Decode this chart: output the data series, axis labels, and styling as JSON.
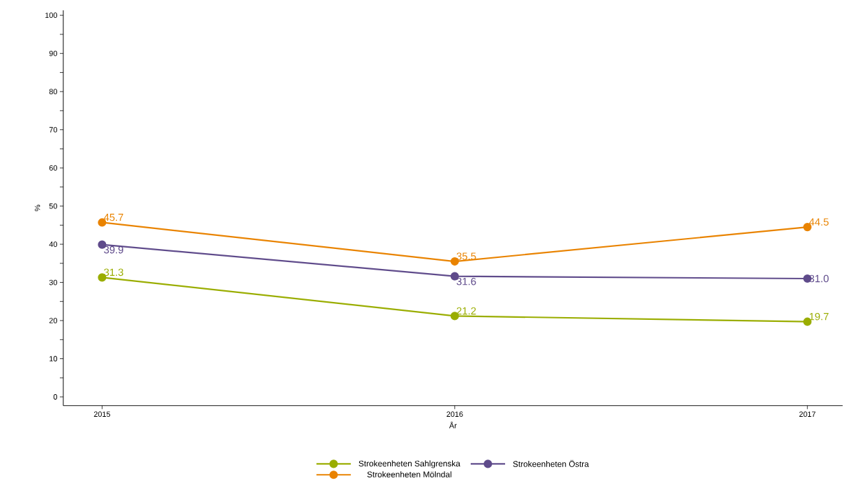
{
  "chart_data": {
    "type": "line",
    "xlabel": "År",
    "ylabel": "%",
    "categories": [
      "2015",
      "2016",
      "2017"
    ],
    "series": [
      {
        "name": "Strokeenheten Sahlgrenska",
        "color": "#9aad00",
        "values": [
          31.3,
          21.2,
          19.7
        ],
        "value_labels": [
          "31.3",
          "21.2",
          "19.7"
        ]
      },
      {
        "name": "Strokeenheten Östra",
        "color": "#5f4b8b",
        "values": [
          39.9,
          31.6,
          31.0
        ],
        "value_labels": [
          "39.9",
          "31.6",
          "31.0"
        ]
      },
      {
        "name": "Strokeenheten Mölndal",
        "color": "#e98300",
        "values": [
          45.7,
          35.5,
          44.5
        ],
        "value_labels": [
          "45.7",
          "35.5",
          "44.5"
        ]
      }
    ],
    "ylim": [
      -2.3,
      101.3
    ],
    "yticks": [
      0,
      {
        "value": 5,
        "label": null
      },
      10,
      {
        "value": 15,
        "label": null
      },
      20,
      {
        "value": 25,
        "label": null
      },
      30,
      {
        "value": 35,
        "label": null
      },
      40,
      {
        "value": 45,
        "label": null
      },
      50,
      {
        "value": 55,
        "label": null
      },
      60,
      {
        "value": 65,
        "label": null
      },
      70,
      {
        "value": 75,
        "label": null
      },
      80,
      {
        "value": 85,
        "label": null
      },
      90,
      {
        "value": 95,
        "label": null
      },
      100
    ],
    "legend": "bottom",
    "marker": "circle",
    "line_style": "solid",
    "grid": false
  }
}
